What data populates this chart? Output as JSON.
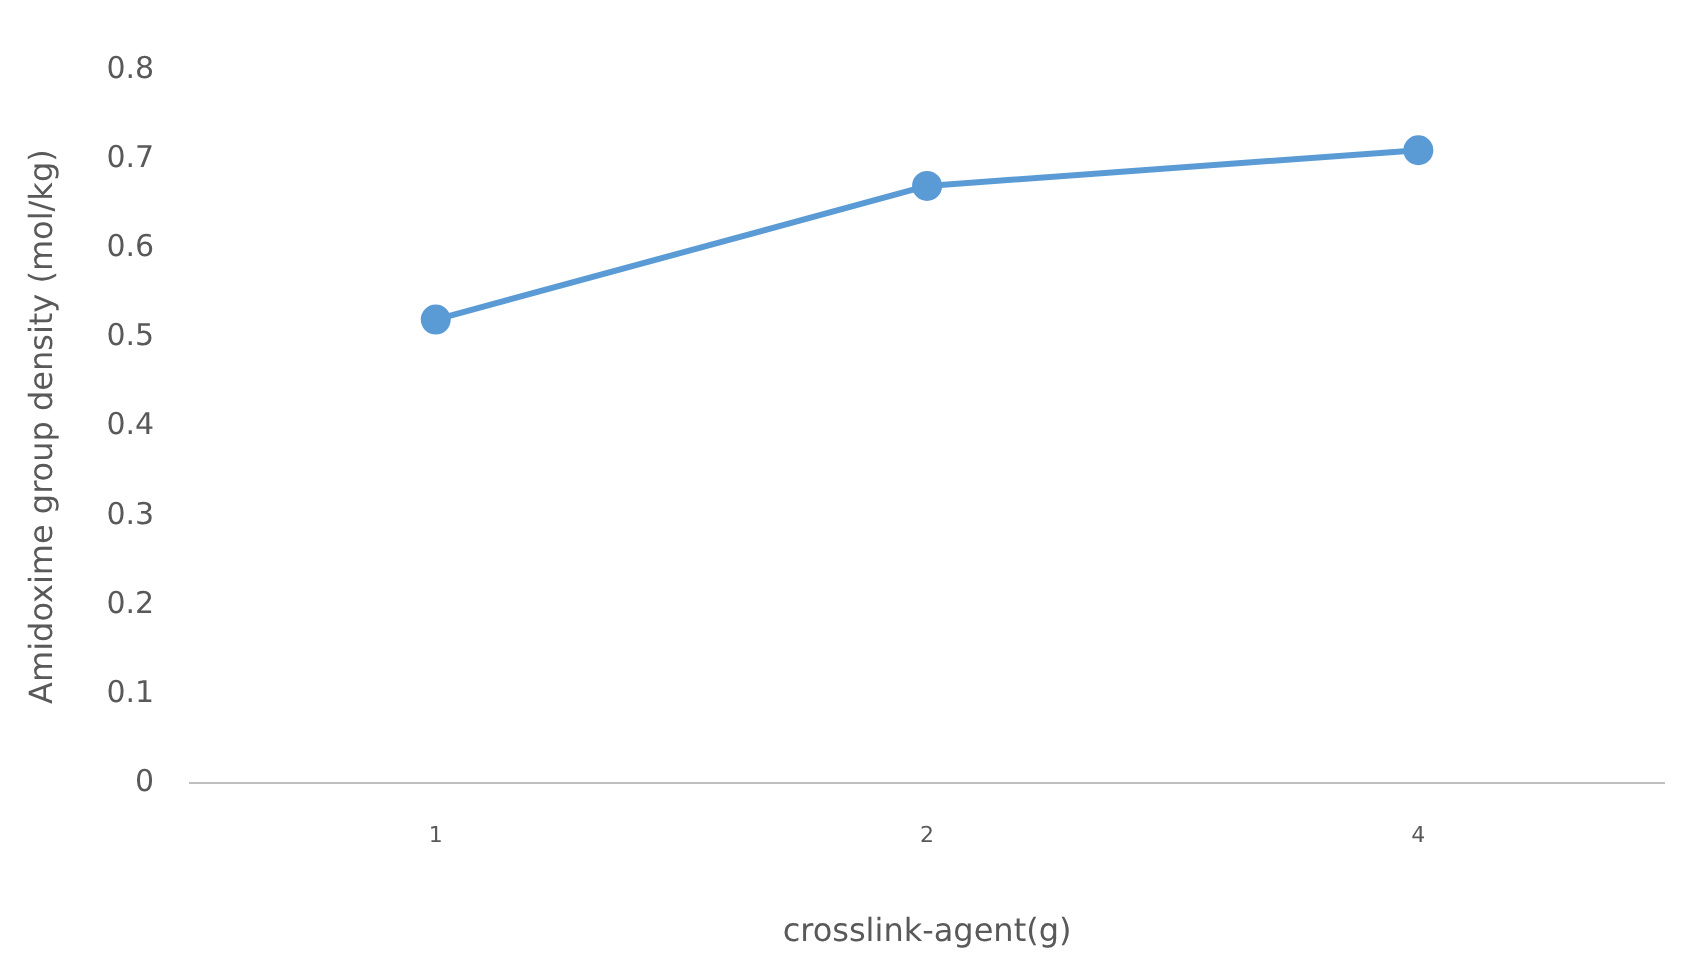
{
  "chart_data": {
    "type": "line",
    "xlabel": "crosslink-agent(g)",
    "ylabel": "Amidoxime group density (mol/kg)",
    "categories": [
      "1",
      "2",
      "4"
    ],
    "series": [
      {
        "color": "#5b9bd5",
        "values": [
          0.52,
          0.67,
          0.71
        ]
      }
    ],
    "ylim": [
      0,
      0.8
    ],
    "yticks": [
      0,
      0.1,
      0.2,
      0.3,
      0.4,
      0.5,
      0.6,
      0.7,
      0.8
    ],
    "grid": false,
    "legend": false,
    "marker": "circle",
    "line_style": "solid"
  }
}
